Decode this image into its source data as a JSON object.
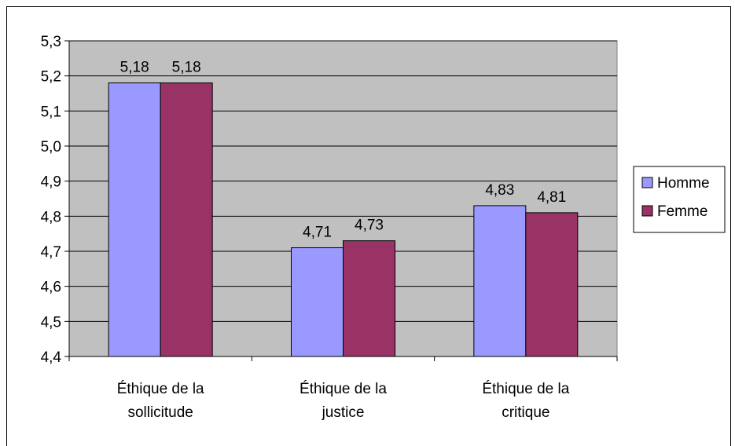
{
  "chart_data": {
    "type": "bar",
    "categories": [
      [
        "Éthique de la",
        "sollicitude"
      ],
      [
        "Éthique de la",
        "justice"
      ],
      [
        "Éthique de la",
        "critique"
      ]
    ],
    "series": [
      {
        "name": "Homme",
        "values": [
          5.18,
          4.71,
          4.83
        ],
        "labels": [
          "5,18",
          "4,71",
          "4,83"
        ]
      },
      {
        "name": "Femme",
        "values": [
          5.18,
          4.73,
          4.81
        ],
        "labels": [
          "5,18",
          "4,73",
          "4,81"
        ]
      }
    ],
    "yticks": [
      "4,4",
      "4,5",
      "4,6",
      "4,7",
      "4,8",
      "4,9",
      "5,0",
      "5,1",
      "5,2",
      "5,3"
    ],
    "ylim": [
      4.4,
      5.3
    ],
    "grid": true,
    "legend_position": "right",
    "colors": {
      "plot_background": "#c0c0c0",
      "homme": "#9999ff",
      "femme": "#993366"
    }
  }
}
